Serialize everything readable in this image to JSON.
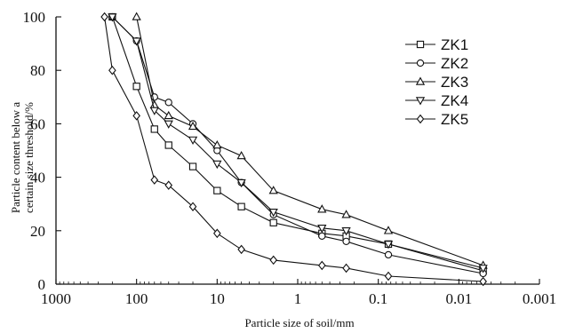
{
  "chart_data": {
    "type": "line",
    "xlabel": "Particle size of soil/mm",
    "ylabel_lines": [
      "Particle content below a",
      "certain size threshold/%"
    ],
    "x_scale": "log",
    "x_reversed": true,
    "xlim": [
      1000,
      0.001
    ],
    "ylim": [
      0,
      100
    ],
    "x_ticks": [
      1000,
      100,
      10,
      1,
      0.1,
      0.01,
      0.001
    ],
    "x_tick_labels": [
      "1000",
      "100",
      "10",
      "1",
      "0.1",
      "0.01",
      "0.001"
    ],
    "y_ticks": [
      0,
      20,
      40,
      60,
      80,
      100
    ],
    "y_tick_labels": [
      "0",
      "20",
      "40",
      "60",
      "80",
      "100"
    ],
    "grid": false,
    "legend_position": "top-right",
    "series": [
      {
        "name": "ZK1",
        "marker": "square",
        "x": [
          200,
          100,
          60,
          40,
          20,
          10,
          5,
          2,
          0.5,
          0.25,
          0.075,
          0.005
        ],
        "y": [
          100,
          74,
          58,
          52,
          44,
          35,
          29,
          23,
          19,
          18,
          15,
          5
        ]
      },
      {
        "name": "ZK2",
        "marker": "circle",
        "x": [
          200,
          100,
          60,
          40,
          20,
          10,
          5,
          2,
          0.5,
          0.25,
          0.075,
          0.005
        ],
        "y": [
          100,
          91,
          70,
          68,
          60,
          50,
          38,
          26,
          18,
          16,
          11,
          4
        ]
      },
      {
        "name": "ZK3",
        "marker": "triangle-up",
        "x": [
          100,
          60,
          40,
          20,
          10,
          5,
          2,
          0.5,
          0.25,
          0.075,
          0.005
        ],
        "y": [
          100,
          67,
          63,
          59,
          52,
          48,
          35,
          28,
          26,
          20,
          7
        ]
      },
      {
        "name": "ZK4",
        "marker": "triangle-down",
        "x": [
          200,
          100,
          60,
          40,
          20,
          10,
          5,
          2,
          0.5,
          0.25,
          0.075,
          0.005
        ],
        "y": [
          100,
          91,
          65,
          60,
          54,
          45,
          38,
          27,
          21,
          20,
          15,
          6
        ]
      },
      {
        "name": "ZK5",
        "marker": "diamond",
        "x": [
          250,
          200,
          100,
          60,
          40,
          20,
          10,
          5,
          2,
          0.5,
          0.25,
          0.075,
          0.005
        ],
        "y": [
          100,
          80,
          63,
          39,
          37,
          29,
          19,
          13,
          9,
          7,
          6,
          3,
          1
        ]
      }
    ]
  }
}
